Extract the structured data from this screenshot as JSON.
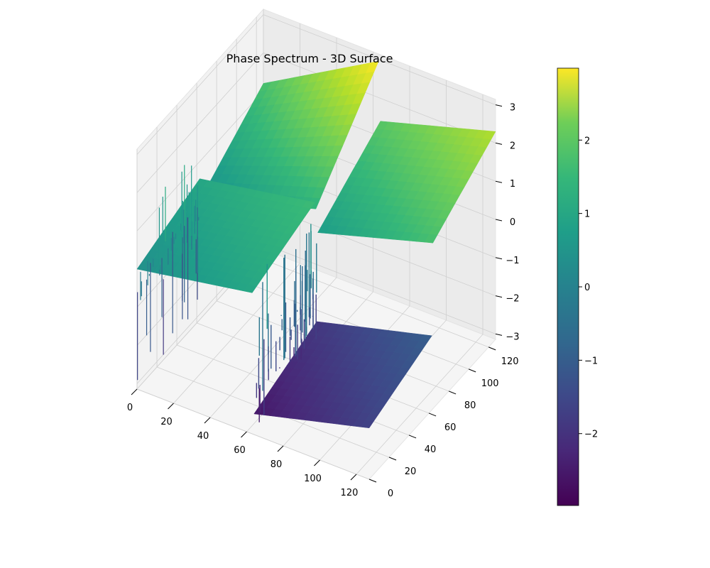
{
  "chart_data": {
    "type": "surface3d",
    "title": "Phase Spectrum - 3D Surface",
    "xlabel": "",
    "ylabel": "",
    "zlabel": "",
    "x_ticks": [
      "0",
      "20",
      "40",
      "60",
      "80",
      "100",
      "120"
    ],
    "y_ticks": [
      "0",
      "20",
      "40",
      "60",
      "80",
      "100",
      "120"
    ],
    "z_ticks": [
      "−3",
      "−2",
      "−1",
      "0",
      "1",
      "2",
      "3"
    ],
    "xlim": [
      0,
      127
    ],
    "ylim": [
      0,
      127
    ],
    "zlim": [
      -3.1416,
      3.1416
    ],
    "colormap": "viridis",
    "colorbar": {
      "ticks": [
        "−2",
        "−1",
        "0",
        "1",
        "2"
      ],
      "tick_values": [
        -2,
        -1,
        0,
        1,
        2
      ],
      "range": [
        -2.98,
        2.98
      ]
    },
    "surface_description": "Phase of 2D FFT: four quadrant planes, each a linear ramp in x and y, with wrap discontinuities and noise spikes along the x≈0 and y≈0 edges",
    "quadrants": [
      {
        "x": [
          0,
          63
        ],
        "y": [
          0,
          63
        ],
        "z_at_corners": [
          0.0,
          0.55,
          0.55,
          1.1
        ]
      },
      {
        "x": [
          64,
          127
        ],
        "y": [
          0,
          63
        ],
        "z_at_corners": [
          -2.6,
          -1.8,
          -2.0,
          -1.2
        ]
      },
      {
        "x": [
          0,
          63
        ],
        "y": [
          64,
          127
        ],
        "z_at_corners": [
          0.0,
          0.9,
          1.2,
          2.95
        ]
      },
      {
        "x": [
          64,
          127
        ],
        "y": [
          64,
          127
        ],
        "z_at_corners": [
          0.3,
          1.2,
          1.4,
          2.3
        ]
      }
    ],
    "grid": true,
    "pane_color": "#f2f2f2"
  }
}
